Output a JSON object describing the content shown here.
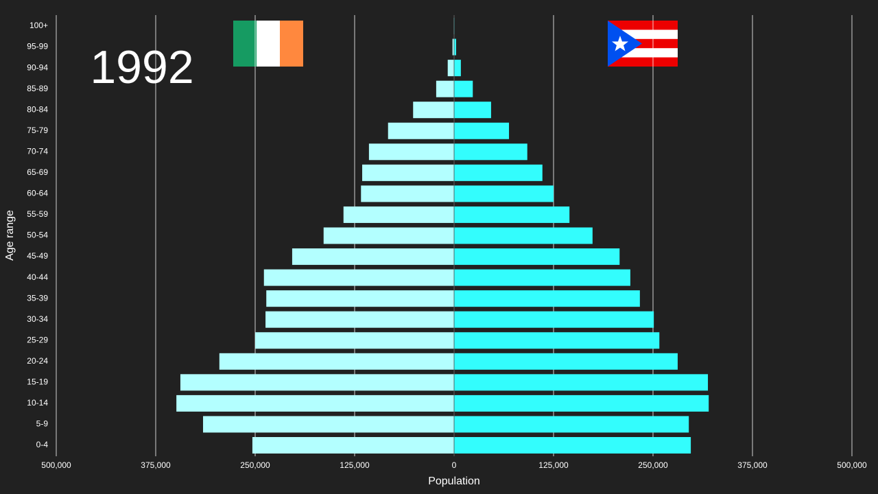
{
  "chart_data": {
    "type": "bar",
    "annotation": "1992",
    "xlabel": "Population",
    "ylabel": "Age range",
    "categories": [
      "0-4",
      "5-9",
      "10-14",
      "15-19",
      "20-24",
      "25-29",
      "30-34",
      "35-39",
      "40-44",
      "45-49",
      "50-54",
      "55-59",
      "60-64",
      "65-69",
      "70-74",
      "75-79",
      "80-84",
      "85-89",
      "90-94",
      "95-99",
      "100+"
    ],
    "series": [
      {
        "color": "#b3ffff",
        "values": [
          -253500,
          -315500,
          -349000,
          -344000,
          -295000,
          -250000,
          -237000,
          -236000,
          -239000,
          -203500,
          -164000,
          -139000,
          -117000,
          -115500,
          -107000,
          -83000,
          -51500,
          -22500,
          -8000,
          -2000,
          -500
        ]
      },
      {
        "color": "#33fdfd",
        "values": [
          297500,
          295000,
          320000,
          319000,
          281000,
          258000,
          251000,
          233500,
          221500,
          208000,
          174000,
          145000,
          125000,
          111000,
          92000,
          69000,
          46500,
          23500,
          8500,
          2500,
          500
        ]
      }
    ],
    "xlim": [
      -500000,
      500000
    ],
    "xticks": [
      {
        "value": -500000,
        "label": "500,000"
      },
      {
        "value": -375000,
        "label": "375,000"
      },
      {
        "value": -250000,
        "label": "250,000"
      },
      {
        "value": -125000,
        "label": "125,000"
      },
      0,
      {
        "value": 125000,
        "label": "125,000"
      },
      {
        "value": 250000,
        "label": "250,000"
      },
      {
        "value": 375000,
        "label": "375,000"
      },
      {
        "value": 500000,
        "label": "500,000"
      }
    ],
    "grid": true
  }
}
